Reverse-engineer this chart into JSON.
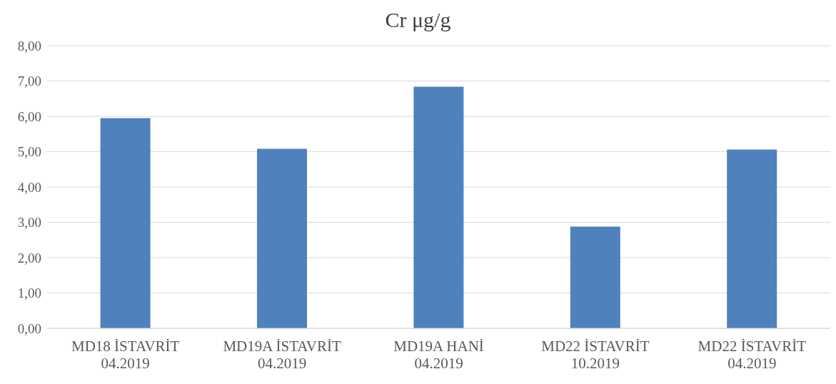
{
  "chart_data": {
    "type": "bar",
    "title": "Cr μg/g",
    "categories": [
      "MD18 İSTAVRİT 04.2019",
      "MD19A İSTAVRİT 04.2019",
      "MD19A HANİ 04.2019",
      "MD22 İSTAVRİT 10.2019",
      "MD22 İSTAVRİT 04.2019"
    ],
    "values": [
      5.95,
      5.08,
      6.84,
      2.88,
      5.06
    ],
    "color": "#4f81bd",
    "ylim": [
      0,
      8
    ],
    "yticks": [
      {
        "value": 0,
        "label": "0,00"
      },
      {
        "value": 1,
        "label": "1,00"
      },
      {
        "value": 2,
        "label": "2,00"
      },
      {
        "value": 3,
        "label": "3,00"
      },
      {
        "value": 4,
        "label": "4,00"
      },
      {
        "value": 5,
        "label": "5,00"
      },
      {
        "value": 6,
        "label": "6,00"
      },
      {
        "value": 7,
        "label": "7,00"
      },
      {
        "value": 8,
        "label": "8,00"
      }
    ],
    "grid": "y"
  }
}
